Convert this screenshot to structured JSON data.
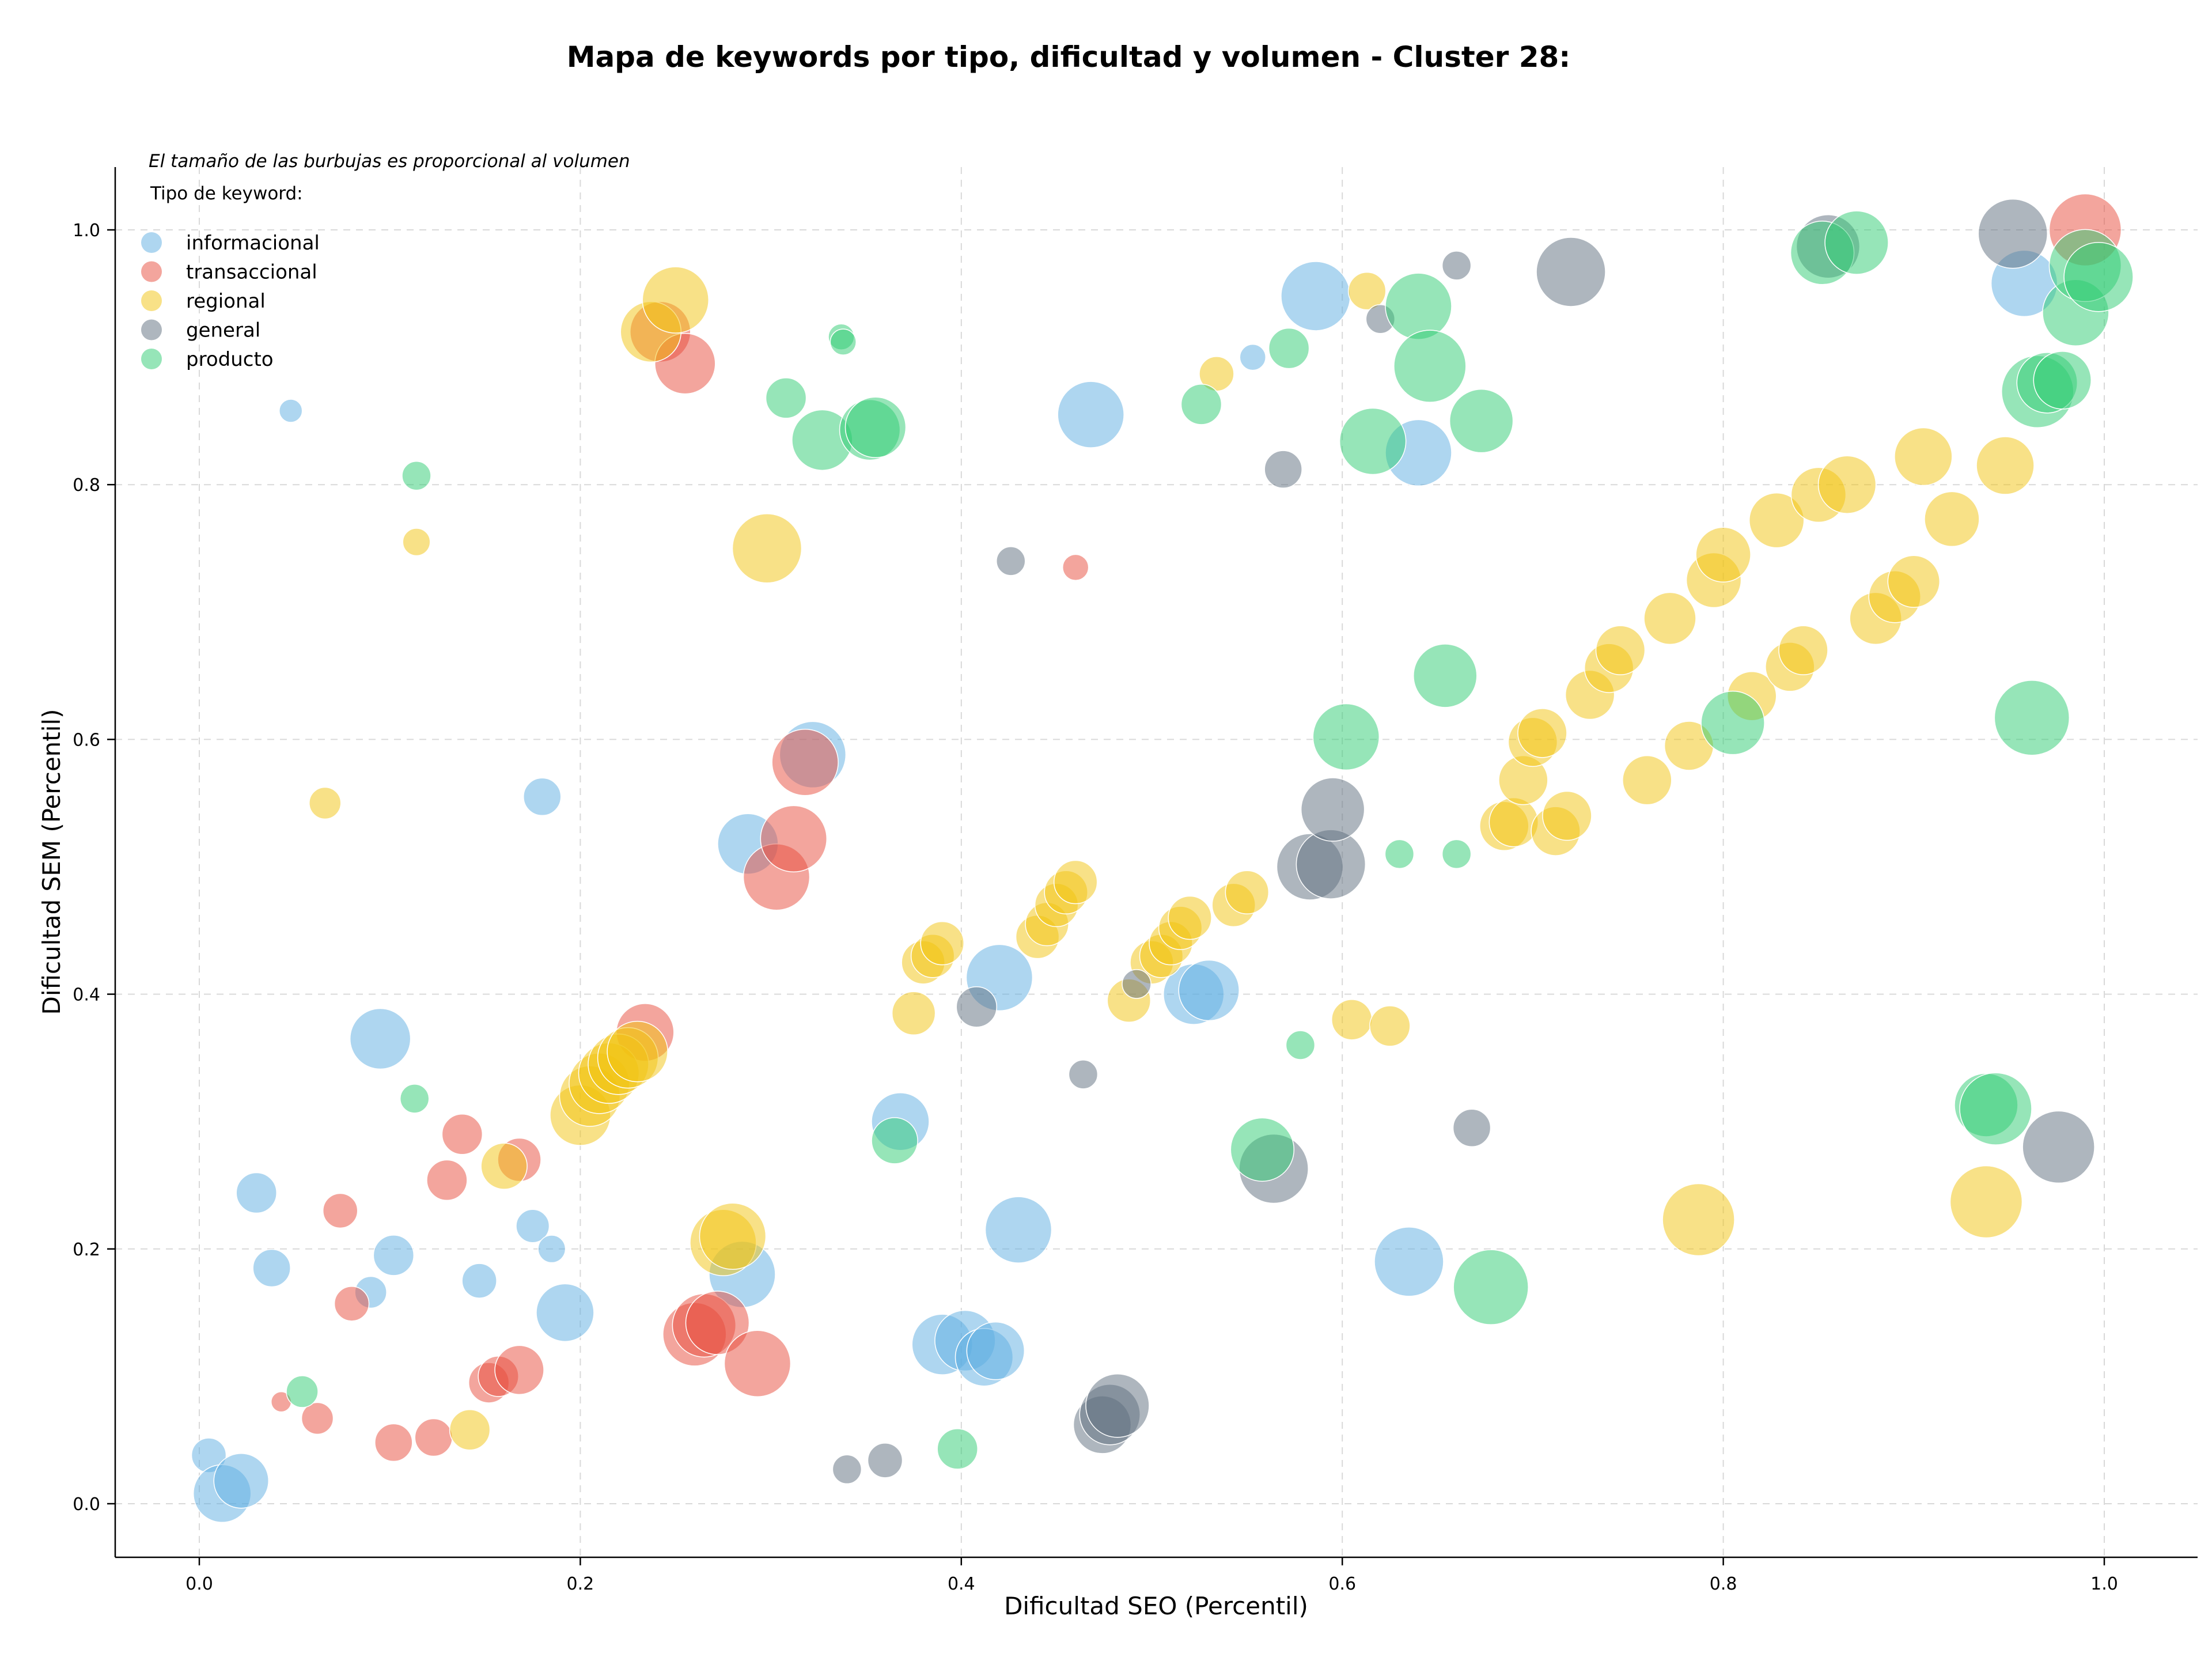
{
  "chart_data": {
    "type": "scatter",
    "title": "Mapa de keywords por tipo, dificultad y volumen - Cluster 28:",
    "xlabel": "Dificultad SEO (Percentil)",
    "ylabel": "Dificultad SEM (Percentil)",
    "xlim": [
      -0.045,
      1.05
    ],
    "ylim": [
      -0.042,
      1.052
    ],
    "xticks": [
      "0.0",
      "0.2",
      "0.4",
      "0.6",
      "0.8",
      "1.0"
    ],
    "yticks": [
      "0.0",
      "0.2",
      "0.4",
      "0.6",
      "0.8",
      "1.0"
    ],
    "grid": true,
    "legend": {
      "placement": "top-left",
      "note": "El tamaño de las burbujas es proporcional al volumen",
      "title": "Tipo de keyword:"
    },
    "series": [
      {
        "name": "informacional",
        "color": "#5dade2",
        "points": [
          [
            0.048,
            0.858,
            16
          ],
          [
            0.005,
            0.038,
            24
          ],
          [
            0.012,
            0.008,
            40
          ],
          [
            0.022,
            0.018,
            38
          ],
          [
            0.03,
            0.244,
            28
          ],
          [
            0.038,
            0.185,
            26
          ],
          [
            0.09,
            0.166,
            22
          ],
          [
            0.095,
            0.365,
            42
          ],
          [
            0.102,
            0.195,
            28
          ],
          [
            0.147,
            0.175,
            24
          ],
          [
            0.175,
            0.218,
            23
          ],
          [
            0.18,
            0.555,
            26
          ],
          [
            0.185,
            0.2,
            19
          ],
          [
            0.192,
            0.15,
            40
          ],
          [
            0.285,
            0.18,
            46
          ],
          [
            0.288,
            0.518,
            42
          ],
          [
            0.322,
            0.588,
            46
          ],
          [
            0.368,
            0.3,
            40
          ],
          [
            0.39,
            0.125,
            42
          ],
          [
            0.402,
            0.128,
            42
          ],
          [
            0.412,
            0.115,
            40
          ],
          [
            0.418,
            0.12,
            40
          ],
          [
            0.42,
            0.413,
            46
          ],
          [
            0.43,
            0.215,
            46
          ],
          [
            0.468,
            0.855,
            46
          ],
          [
            0.522,
            0.4,
            42
          ],
          [
            0.53,
            0.403,
            42
          ],
          [
            0.553,
            0.9,
            18
          ],
          [
            0.586,
            0.948,
            48
          ],
          [
            0.64,
            0.825,
            46
          ],
          [
            0.635,
            0.19,
            48
          ],
          [
            0.958,
            0.958,
            46
          ]
        ]
      },
      {
        "name": "transaccional",
        "color": "#e74c3c",
        "points": [
          [
            0.043,
            0.08,
            14
          ],
          [
            0.062,
            0.067,
            22
          ],
          [
            0.074,
            0.23,
            24
          ],
          [
            0.08,
            0.157,
            24
          ],
          [
            0.102,
            0.048,
            26
          ],
          [
            0.123,
            0.052,
            26
          ],
          [
            0.13,
            0.254,
            28
          ],
          [
            0.138,
            0.29,
            28
          ],
          [
            0.152,
            0.095,
            28
          ],
          [
            0.157,
            0.1,
            28
          ],
          [
            0.168,
            0.27,
            30
          ],
          [
            0.168,
            0.105,
            34
          ],
          [
            0.234,
            0.37,
            40
          ],
          [
            0.242,
            0.92,
            42
          ],
          [
            0.255,
            0.895,
            42
          ],
          [
            0.26,
            0.133,
            44
          ],
          [
            0.265,
            0.14,
            44
          ],
          [
            0.272,
            0.142,
            44
          ],
          [
            0.293,
            0.11,
            46
          ],
          [
            0.303,
            0.492,
            46
          ],
          [
            0.312,
            0.522,
            46
          ],
          [
            0.318,
            0.582,
            46
          ],
          [
            0.46,
            0.735,
            18
          ],
          [
            0.99,
            1.0,
            50
          ]
        ]
      },
      {
        "name": "regional",
        "color": "#f1c40f",
        "points": [
          [
            0.066,
            0.55,
            22
          ],
          [
            0.114,
            0.755,
            19
          ],
          [
            0.142,
            0.058,
            28
          ],
          [
            0.16,
            0.265,
            32
          ],
          [
            0.2,
            0.305,
            42
          ],
          [
            0.205,
            0.32,
            42
          ],
          [
            0.21,
            0.33,
            42
          ],
          [
            0.215,
            0.338,
            42
          ],
          [
            0.22,
            0.345,
            42
          ],
          [
            0.225,
            0.35,
            42
          ],
          [
            0.23,
            0.355,
            42
          ],
          [
            0.237,
            0.92,
            42
          ],
          [
            0.25,
            0.945,
            46
          ],
          [
            0.275,
            0.205,
            46
          ],
          [
            0.28,
            0.21,
            46
          ],
          [
            0.298,
            0.75,
            48
          ],
          [
            0.375,
            0.385,
            30
          ],
          [
            0.38,
            0.425,
            30
          ],
          [
            0.385,
            0.43,
            30
          ],
          [
            0.39,
            0.44,
            30
          ],
          [
            0.44,
            0.445,
            30
          ],
          [
            0.445,
            0.455,
            30
          ],
          [
            0.45,
            0.47,
            30
          ],
          [
            0.455,
            0.48,
            30
          ],
          [
            0.46,
            0.488,
            30
          ],
          [
            0.488,
            0.395,
            30
          ],
          [
            0.5,
            0.425,
            30
          ],
          [
            0.505,
            0.43,
            30
          ],
          [
            0.51,
            0.44,
            30
          ],
          [
            0.515,
            0.452,
            30
          ],
          [
            0.52,
            0.46,
            30
          ],
          [
            0.543,
            0.47,
            30
          ],
          [
            0.55,
            0.48,
            30
          ],
          [
            0.613,
            0.952,
            26
          ],
          [
            0.534,
            0.887,
            24
          ],
          [
            0.605,
            0.38,
            28
          ],
          [
            0.625,
            0.375,
            28
          ],
          [
            0.685,
            0.532,
            34
          ],
          [
            0.69,
            0.535,
            34
          ],
          [
            0.695,
            0.568,
            34
          ],
          [
            0.7,
            0.598,
            34
          ],
          [
            0.705,
            0.605,
            34
          ],
          [
            0.712,
            0.528,
            34
          ],
          [
            0.718,
            0.54,
            34
          ],
          [
            0.73,
            0.635,
            34
          ],
          [
            0.74,
            0.656,
            34
          ],
          [
            0.746,
            0.67,
            34
          ],
          [
            0.76,
            0.568,
            34
          ],
          [
            0.782,
            0.595,
            34
          ],
          [
            0.772,
            0.695,
            36
          ],
          [
            0.795,
            0.725,
            38
          ],
          [
            0.8,
            0.745,
            38
          ],
          [
            0.828,
            0.772,
            38
          ],
          [
            0.815,
            0.634,
            34
          ],
          [
            0.835,
            0.657,
            34
          ],
          [
            0.842,
            0.67,
            34
          ],
          [
            0.85,
            0.792,
            38
          ],
          [
            0.865,
            0.8,
            40
          ],
          [
            0.88,
            0.695,
            36
          ],
          [
            0.89,
            0.712,
            36
          ],
          [
            0.9,
            0.724,
            36
          ],
          [
            0.905,
            0.822,
            40
          ],
          [
            0.92,
            0.773,
            38
          ],
          [
            0.948,
            0.815,
            40
          ],
          [
            0.787,
            0.223,
            50
          ],
          [
            0.938,
            0.237,
            50
          ]
        ]
      },
      {
        "name": "general",
        "color": "#5d6d7e",
        "points": [
          [
            0.34,
            0.027,
            20
          ],
          [
            0.36,
            0.034,
            24
          ],
          [
            0.408,
            0.39,
            28
          ],
          [
            0.426,
            0.74,
            20
          ],
          [
            0.464,
            0.337,
            20
          ],
          [
            0.492,
            0.408,
            20
          ],
          [
            0.474,
            0.062,
            40
          ],
          [
            0.478,
            0.07,
            42
          ],
          [
            0.482,
            0.077,
            44
          ],
          [
            0.564,
            0.263,
            48
          ],
          [
            0.569,
            0.812,
            26
          ],
          [
            0.583,
            0.5,
            46
          ],
          [
            0.594,
            0.502,
            48
          ],
          [
            0.595,
            0.545,
            44
          ],
          [
            0.62,
            0.93,
            20
          ],
          [
            0.66,
            0.972,
            20
          ],
          [
            0.668,
            0.295,
            26
          ],
          [
            0.72,
            0.967,
            48
          ],
          [
            0.855,
            0.987,
            44
          ],
          [
            0.952,
            0.997,
            48
          ],
          [
            0.976,
            0.28,
            50
          ]
        ]
      },
      {
        "name": "producto",
        "color": "#2ecc71",
        "points": [
          [
            0.054,
            0.088,
            22
          ],
          [
            0.114,
            0.807,
            20
          ],
          [
            0.113,
            0.318,
            20
          ],
          [
            0.308,
            0.868,
            28
          ],
          [
            0.327,
            0.835,
            42
          ],
          [
            0.337,
            0.916,
            18
          ],
          [
            0.338,
            0.912,
            18
          ],
          [
            0.352,
            0.843,
            42
          ],
          [
            0.355,
            0.845,
            42
          ],
          [
            0.365,
            0.285,
            32
          ],
          [
            0.398,
            0.043,
            28
          ],
          [
            0.526,
            0.863,
            28
          ],
          [
            0.558,
            0.278,
            44
          ],
          [
            0.572,
            0.907,
            28
          ],
          [
            0.578,
            0.36,
            20
          ],
          [
            0.602,
            0.602,
            46
          ],
          [
            0.616,
            0.834,
            46
          ],
          [
            0.63,
            0.51,
            20
          ],
          [
            0.64,
            0.94,
            46
          ],
          [
            0.646,
            0.893,
            50
          ],
          [
            0.654,
            0.65,
            44
          ],
          [
            0.66,
            0.51,
            20
          ],
          [
            0.673,
            0.85,
            44
          ],
          [
            0.678,
            0.17,
            52
          ],
          [
            0.805,
            0.613,
            44
          ],
          [
            0.852,
            0.982,
            44
          ],
          [
            0.87,
            0.99,
            44
          ],
          [
            0.938,
            0.313,
            44
          ],
          [
            0.943,
            0.31,
            50
          ],
          [
            0.962,
            0.617,
            52
          ],
          [
            0.965,
            0.873,
            50
          ],
          [
            0.97,
            0.88,
            42
          ],
          [
            0.978,
            0.882,
            40
          ],
          [
            0.985,
            0.935,
            46
          ],
          [
            0.99,
            0.972,
            50
          ],
          [
            0.997,
            0.963,
            48
          ]
        ]
      }
    ]
  }
}
